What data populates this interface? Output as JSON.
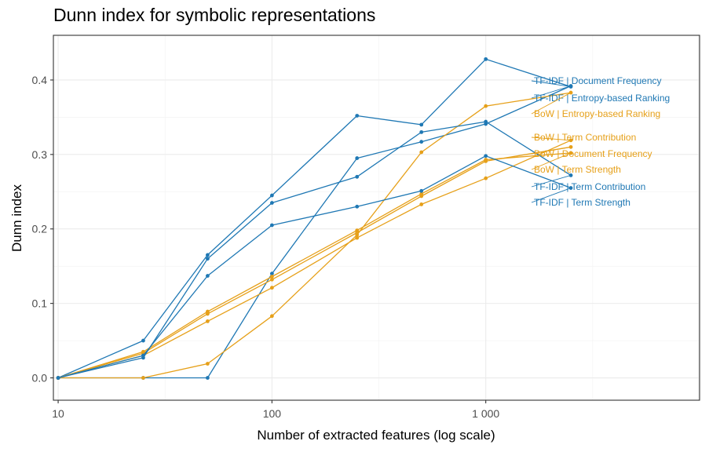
{
  "chart_data": {
    "type": "line",
    "title": "Dunn index for symbolic representations",
    "xlabel": "Number of extracted features (log scale)",
    "ylabel": "Dunn index",
    "x_scale": "log10",
    "xlim": [
      9.5,
      10000
    ],
    "ylim": [
      -0.03,
      0.46
    ],
    "x_ticks": [
      10,
      100,
      1000
    ],
    "x_tick_labels": [
      "10",
      "100",
      "1 000"
    ],
    "y_ticks": [
      0.0,
      0.1,
      0.2,
      0.3,
      0.4
    ],
    "y_tick_labels": [
      "0.0",
      "0.1",
      "0.2",
      "0.3",
      "0.4"
    ],
    "x": [
      10,
      25,
      50,
      100,
      250,
      500,
      1000,
      2500
    ],
    "grid": true,
    "legend": "direct labels at right",
    "colors": {
      "TF-IDF": "#1f78b4",
      "BoW": "#e6a019"
    },
    "series": [
      {
        "name": "TF-IDF | Document Frequency",
        "family": "TF-IDF",
        "values": [
          0.0,
          0.05,
          0.165,
          0.245,
          0.352,
          0.34,
          0.428,
          0.391
        ]
      },
      {
        "name": "TF-IDF | Entropy-based Ranking",
        "family": "TF-IDF",
        "values": [
          0.0,
          0.0,
          0.0,
          0.14,
          0.295,
          0.317,
          0.341,
          0.392
        ]
      },
      {
        "name": "BoW | Entropy-based Ranking",
        "family": "BoW",
        "values": [
          0.0,
          0.0,
          0.019,
          0.083,
          0.192,
          0.303,
          0.365,
          0.383
        ]
      },
      {
        "name": "BoW | Term Contribution",
        "family": "BoW",
        "values": [
          0.0,
          0.03,
          0.076,
          0.121,
          0.188,
          0.233,
          0.268,
          0.319
        ]
      },
      {
        "name": "BoW | Document Frequency",
        "family": "BoW",
        "values": [
          0.0,
          0.033,
          0.086,
          0.132,
          0.195,
          0.244,
          0.291,
          0.31
        ]
      },
      {
        "name": "BoW | Term Strength",
        "family": "BoW",
        "values": [
          0.0,
          0.035,
          0.089,
          0.136,
          0.198,
          0.247,
          0.293,
          0.302
        ]
      },
      {
        "name": "TF-IDF | Term Contribution",
        "family": "TF-IDF",
        "values": [
          0.0,
          0.027,
          0.16,
          0.235,
          0.27,
          0.33,
          0.344,
          0.272
        ]
      },
      {
        "name": "TF-IDF | Term Strength",
        "family": "TF-IDF",
        "values": [
          0.0,
          0.03,
          0.137,
          0.205,
          0.23,
          0.251,
          0.298,
          0.255
        ]
      }
    ]
  }
}
